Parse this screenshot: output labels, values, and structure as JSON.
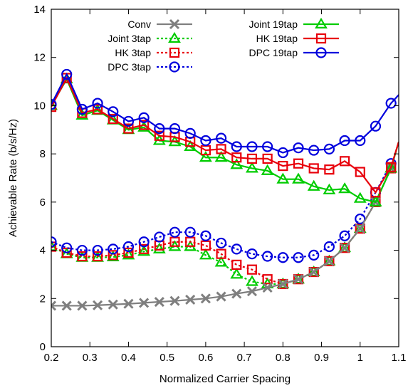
{
  "chart_data": {
    "type": "line",
    "title": "",
    "xlabel": "Normalized Carrier Spacing",
    "ylabel": "Achievable Rate (b/s/Hz)",
    "xlim": [
      0.2,
      1.1
    ],
    "ylim": [
      0,
      14
    ],
    "xticks": [
      0.2,
      0.3,
      0.4,
      0.5,
      0.6,
      0.7,
      0.8,
      0.9,
      1,
      1.1
    ],
    "xtick_labels": [
      "0.2",
      "0.3",
      "0.4",
      "0.5",
      "0.6",
      "0.7",
      "0.8",
      "0.9",
      "1",
      "1.1"
    ],
    "yticks": [
      0,
      2,
      4,
      6,
      8,
      10,
      12,
      14
    ],
    "ytick_labels": [
      "0",
      "2",
      "4",
      "6",
      "8",
      "10",
      "12",
      "14"
    ],
    "grid": false,
    "legend_position": "top",
    "x": [
      0.2,
      0.24,
      0.28,
      0.32,
      0.36,
      0.4,
      0.44,
      0.48,
      0.52,
      0.56,
      0.6,
      0.64,
      0.68,
      0.72,
      0.76,
      0.8,
      0.84,
      0.88,
      0.92,
      0.96,
      1.0,
      1.04,
      1.08
    ],
    "series": [
      {
        "name": "Conv",
        "color": "#7f7f7f",
        "marker": "x",
        "dashed": false,
        "values": [
          1.7,
          1.7,
          1.7,
          1.72,
          1.75,
          1.78,
          1.82,
          1.86,
          1.9,
          1.95,
          2.0,
          2.08,
          2.2,
          2.3,
          2.45,
          2.6,
          2.8,
          3.1,
          3.55,
          4.1,
          4.9,
          6.0,
          7.4
        ]
      },
      {
        "name": "Joint 3tap",
        "color": "#00cc00",
        "marker": "triangle",
        "dashed": true,
        "values": [
          4.15,
          3.85,
          3.7,
          3.7,
          3.72,
          3.8,
          3.95,
          4.05,
          4.15,
          4.15,
          3.8,
          3.5,
          3.0,
          2.7,
          2.6,
          2.6,
          2.8,
          3.1,
          3.55,
          4.1,
          4.9,
          6.0,
          7.4
        ]
      },
      {
        "name": "HK 3tap",
        "color": "#e8000b",
        "marker": "square",
        "dashed": true,
        "values": [
          4.15,
          3.9,
          3.75,
          3.75,
          3.8,
          3.9,
          4.05,
          4.2,
          4.35,
          4.35,
          4.2,
          3.85,
          3.4,
          3.2,
          2.8,
          2.6,
          2.8,
          3.1,
          3.55,
          4.1,
          4.9,
          6.0,
          7.4
        ]
      },
      {
        "name": "DPC 3tap",
        "color": "#0000dd",
        "marker": "circle",
        "dashed": true,
        "values": [
          4.35,
          4.1,
          4.0,
          4.0,
          4.05,
          4.15,
          4.35,
          4.55,
          4.75,
          4.75,
          4.6,
          4.3,
          4.05,
          3.85,
          3.75,
          3.7,
          3.7,
          3.8,
          4.15,
          4.6,
          5.3,
          6.4,
          7.6
        ]
      },
      {
        "name": "Joint 19tap",
        "color": "#00cc00",
        "marker": "triangle",
        "dashed": false,
        "values": [
          10.0,
          11.1,
          9.6,
          9.8,
          9.4,
          9.0,
          9.1,
          8.55,
          8.5,
          8.3,
          7.85,
          7.85,
          7.55,
          7.4,
          7.3,
          6.95,
          6.95,
          6.65,
          6.5,
          6.55,
          6.15,
          6.0,
          7.4
        ]
      },
      {
        "name": "HK 19tap",
        "color": "#e8000b",
        "marker": "square",
        "dashed": false,
        "values": [
          9.95,
          11.15,
          9.7,
          9.85,
          9.45,
          9.05,
          9.2,
          8.75,
          8.7,
          8.5,
          8.15,
          8.2,
          7.85,
          7.8,
          7.8,
          7.5,
          7.6,
          7.4,
          7.35,
          7.7,
          7.25,
          6.4,
          7.45
        ]
      },
      {
        "name": "DPC 19tap",
        "color": "#0000dd",
        "marker": "circle",
        "dashed": false,
        "values": [
          10.05,
          11.3,
          9.85,
          10.1,
          9.75,
          9.35,
          9.5,
          9.05,
          9.05,
          8.85,
          8.55,
          8.65,
          8.3,
          8.3,
          8.3,
          8.05,
          8.25,
          8.15,
          8.2,
          8.55,
          8.55,
          9.15,
          10.1
        ]
      }
    ],
    "extra_segments": [
      {
        "series": "DPC 19tap",
        "x": [
          1.08,
          1.1
        ],
        "values": [
          10.1,
          10.45
        ]
      },
      {
        "series": "Joint 19tap",
        "x": [
          1.08,
          1.1
        ],
        "values": [
          7.4,
          8.5
        ]
      },
      {
        "series": "HK 19tap",
        "x": [
          1.08,
          1.1
        ],
        "values": [
          7.45,
          8.5
        ]
      },
      {
        "series": "Conv",
        "x": [
          1.08,
          1.1
        ],
        "values": [
          7.4,
          8.5
        ]
      }
    ]
  }
}
